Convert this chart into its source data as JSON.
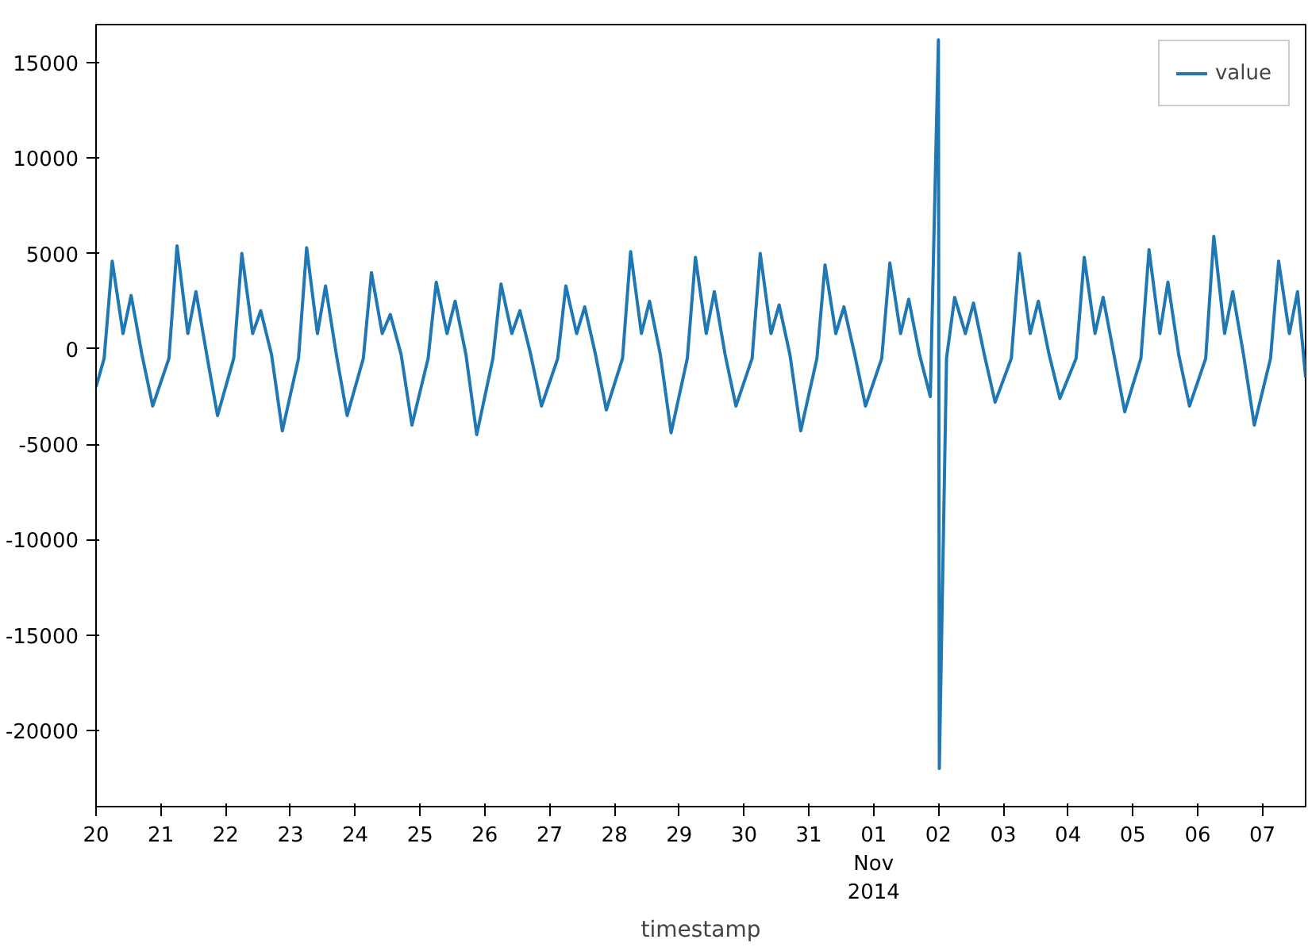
{
  "chart_data": {
    "type": "line",
    "xlabel": "timestamp",
    "x": [
      "2014-10-20T00:00",
      "2014-10-20T03:00",
      "2014-10-20T06:00",
      "2014-10-20T10:00",
      "2014-10-20T13:00",
      "2014-10-20T17:00",
      "2014-10-20T21:00",
      "2014-10-21T03:00",
      "2014-10-21T06:00",
      "2014-10-21T10:00",
      "2014-10-21T13:00",
      "2014-10-21T17:00",
      "2014-10-21T21:00",
      "2014-10-22T03:00",
      "2014-10-22T06:00",
      "2014-10-22T10:00",
      "2014-10-22T13:00",
      "2014-10-22T17:00",
      "2014-10-22T21:00",
      "2014-10-23T03:00",
      "2014-10-23T06:00",
      "2014-10-23T10:00",
      "2014-10-23T13:00",
      "2014-10-23T17:00",
      "2014-10-23T21:00",
      "2014-10-24T03:00",
      "2014-10-24T06:00",
      "2014-10-24T10:00",
      "2014-10-24T13:00",
      "2014-10-24T17:00",
      "2014-10-24T21:00",
      "2014-10-25T03:00",
      "2014-10-25T06:00",
      "2014-10-25T10:00",
      "2014-10-25T13:00",
      "2014-10-25T17:00",
      "2014-10-25T21:00",
      "2014-10-26T03:00",
      "2014-10-26T06:00",
      "2014-10-26T10:00",
      "2014-10-26T13:00",
      "2014-10-26T17:00",
      "2014-10-26T21:00",
      "2014-10-27T03:00",
      "2014-10-27T06:00",
      "2014-10-27T10:00",
      "2014-10-27T13:00",
      "2014-10-27T17:00",
      "2014-10-27T21:00",
      "2014-10-28T03:00",
      "2014-10-28T06:00",
      "2014-10-28T10:00",
      "2014-10-28T13:00",
      "2014-10-28T17:00",
      "2014-10-28T21:00",
      "2014-10-29T03:00",
      "2014-10-29T06:00",
      "2014-10-29T10:00",
      "2014-10-29T13:00",
      "2014-10-29T17:00",
      "2014-10-29T21:00",
      "2014-10-30T03:00",
      "2014-10-30T06:00",
      "2014-10-30T10:00",
      "2014-10-30T13:00",
      "2014-10-30T17:00",
      "2014-10-30T21:00",
      "2014-10-31T03:00",
      "2014-10-31T06:00",
      "2014-10-31T10:00",
      "2014-10-31T13:00",
      "2014-10-31T17:00",
      "2014-10-31T21:00",
      "2014-11-01T03:00",
      "2014-11-01T06:00",
      "2014-11-01T10:00",
      "2014-11-01T13:00",
      "2014-11-01T17:00",
      "2014-11-01T21:00",
      "2014-11-02T00:00",
      "2014-11-02T00:20",
      "2014-11-02T03:00",
      "2014-11-02T06:00",
      "2014-11-02T10:00",
      "2014-11-02T13:00",
      "2014-11-02T17:00",
      "2014-11-02T21:00",
      "2014-11-03T03:00",
      "2014-11-03T06:00",
      "2014-11-03T10:00",
      "2014-11-03T13:00",
      "2014-11-03T17:00",
      "2014-11-03T21:00",
      "2014-11-04T03:00",
      "2014-11-04T06:00",
      "2014-11-04T10:00",
      "2014-11-04T13:00",
      "2014-11-04T17:00",
      "2014-11-04T21:00",
      "2014-11-05T03:00",
      "2014-11-05T06:00",
      "2014-11-05T10:00",
      "2014-11-05T13:00",
      "2014-11-05T17:00",
      "2014-11-05T21:00",
      "2014-11-06T03:00",
      "2014-11-06T06:00",
      "2014-11-06T10:00",
      "2014-11-06T13:00",
      "2014-11-06T17:00",
      "2014-11-06T21:00",
      "2014-11-07T03:00",
      "2014-11-07T06:00",
      "2014-11-07T10:00",
      "2014-11-07T13:00",
      "2014-11-07T16:00"
    ],
    "series": [
      {
        "name": "value",
        "color": "#1f77b4",
        "values": [
          -2000,
          -500,
          4600,
          800,
          2800,
          -300,
          -3000,
          -500,
          5400,
          800,
          3000,
          -300,
          -3500,
          -500,
          5000,
          800,
          2000,
          -300,
          -4300,
          -500,
          5300,
          800,
          3300,
          -300,
          -3500,
          -500,
          4000,
          800,
          1800,
          -300,
          -4000,
          -500,
          3500,
          800,
          2500,
          -300,
          -4500,
          -500,
          3400,
          800,
          2000,
          -300,
          -3000,
          -500,
          3300,
          800,
          2200,
          -300,
          -3200,
          -500,
          5100,
          800,
          2500,
          -300,
          -4400,
          -500,
          4800,
          800,
          3000,
          -300,
          -3000,
          -500,
          5000,
          800,
          2300,
          -300,
          -4300,
          -500,
          4400,
          800,
          2200,
          -300,
          -3000,
          -500,
          4500,
          800,
          2600,
          -300,
          -2500,
          16200,
          -22000,
          -500,
          2700,
          800,
          2400,
          -300,
          -2800,
          -500,
          5000,
          800,
          2500,
          -300,
          -2600,
          -500,
          4800,
          800,
          2700,
          -300,
          -3300,
          -500,
          5200,
          800,
          3500,
          -300,
          -3000,
          -500,
          5900,
          800,
          3000,
          -300,
          -4000,
          -500,
          4600,
          800,
          3000,
          -1500
        ]
      }
    ],
    "xlim": [
      "2014-10-20T00:00",
      "2014-11-07T16:00"
    ],
    "xticks": [
      {
        "value": "2014-10-20",
        "label": "20"
      },
      {
        "value": "2014-10-21",
        "label": "21"
      },
      {
        "value": "2014-10-22",
        "label": "22"
      },
      {
        "value": "2014-10-23",
        "label": "23"
      },
      {
        "value": "2014-10-24",
        "label": "24"
      },
      {
        "value": "2014-10-25",
        "label": "25"
      },
      {
        "value": "2014-10-26",
        "label": "26"
      },
      {
        "value": "2014-10-27",
        "label": "27"
      },
      {
        "value": "2014-10-28",
        "label": "28"
      },
      {
        "value": "2014-10-29",
        "label": "29"
      },
      {
        "value": "2014-10-30",
        "label": "30"
      },
      {
        "value": "2014-10-31",
        "label": "31"
      },
      {
        "value": "2014-11-01",
        "label": "01\nNov\n2014"
      },
      {
        "value": "2014-11-02",
        "label": "02"
      },
      {
        "value": "2014-11-03",
        "label": "03"
      },
      {
        "value": "2014-11-04",
        "label": "04"
      },
      {
        "value": "2014-11-05",
        "label": "05"
      },
      {
        "value": "2014-11-06",
        "label": "06"
      },
      {
        "value": "2014-11-07",
        "label": "07"
      }
    ],
    "ylim": [
      -24000,
      17000
    ],
    "yticks": [
      -20000,
      -15000,
      -10000,
      -5000,
      0,
      5000,
      10000,
      15000
    ],
    "grid": false,
    "legend": "top right",
    "marker": "none",
    "line_style": "solid"
  }
}
